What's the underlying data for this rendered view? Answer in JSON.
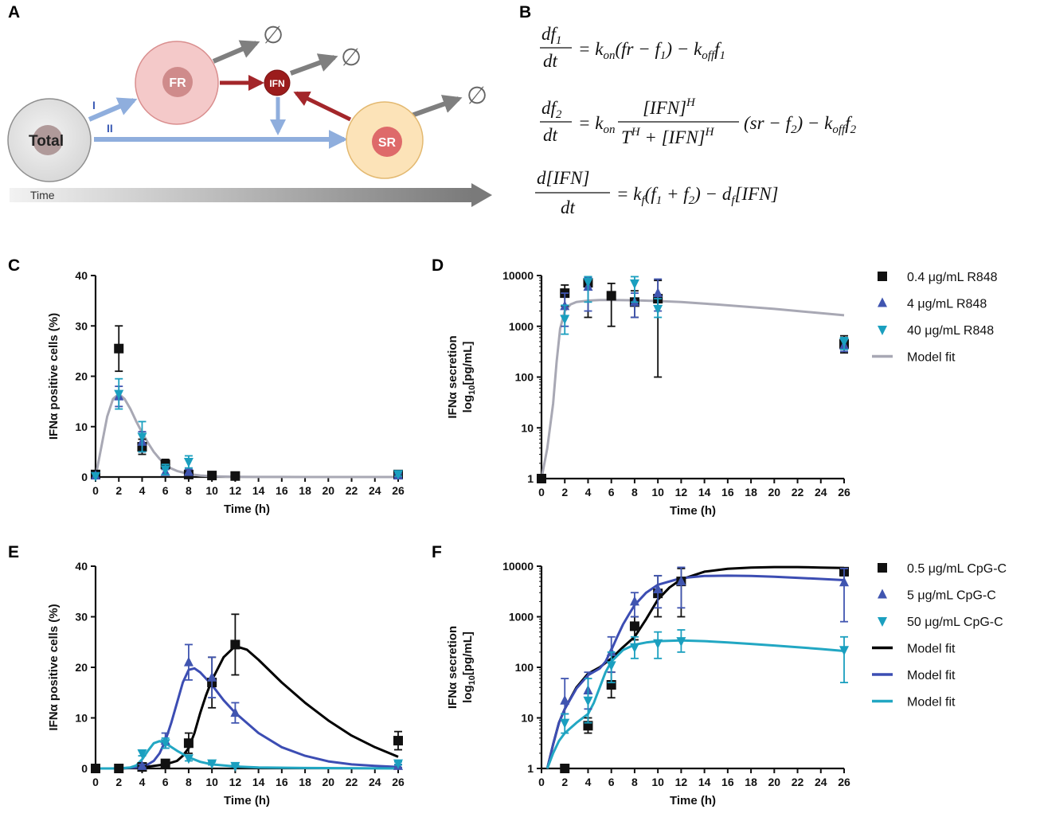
{
  "panels": {
    "a": "A",
    "b": "B",
    "c": "C",
    "d": "D",
    "e": "E",
    "f": "F"
  },
  "diagram": {
    "total_label": "Total",
    "fr_label": "FR",
    "ifn_label": "IFN",
    "sr_label": "SR",
    "route_one": "I",
    "route_two": "II",
    "time_label": "Time",
    "degrade_symbol": "∅",
    "colors": {
      "total_fill": "#e8e8e8",
      "fr_fill": "#f4c9c9",
      "sr_fill": "#fce3b8",
      "ifn_fill": "#9b1c1c",
      "blue_arrow": "#8faedd",
      "red_arrow": "#a3262a",
      "gray_arrow": "#7f7f7f"
    }
  },
  "equations": {
    "eq1": {
      "lhs_num": "df",
      "lhs_num_sub": "1",
      "lhs_den": "dt",
      "rhs_parts": [
        "= k",
        "on",
        "(fr − f",
        "1",
        ") − k",
        "off",
        "f",
        "1"
      ]
    },
    "eq2": {
      "lhs_num": "df",
      "lhs_num_sub": "2",
      "lhs_den": "dt",
      "pre": "= k",
      "pre_sub": "on",
      "frac_num": "[IFN]",
      "frac_num_sup": "H",
      "frac_den_a": "T",
      "frac_den_a_sup": "H",
      "frac_den_b": " + [IFN]",
      "frac_den_b_sup": "H",
      "post": "(sr − f",
      "post_sub": "2",
      "post2": ") − k",
      "post2_sub": "off",
      "post3": "f",
      "post3_sub": "2"
    },
    "eq3": {
      "lhs_num": "d[IFN]",
      "lhs_den": "dt",
      "rhs_parts": [
        "= k",
        "f",
        "(f",
        "1",
        " + f",
        "2",
        ") − d",
        "f",
        "[IFN]"
      ]
    }
  },
  "chart_data": [
    {
      "id": "C",
      "type": "scatter",
      "xlabel": "Time (h)",
      "ylabel": "IFNα positive cells (%)",
      "xlim": [
        0,
        26
      ],
      "ylim": [
        0,
        40
      ],
      "yscale": "linear",
      "xticks": [
        0,
        2,
        4,
        6,
        8,
        10,
        12,
        14,
        16,
        18,
        20,
        22,
        24,
        26
      ],
      "yticks": [
        0,
        10,
        20,
        30,
        40
      ],
      "series": [
        {
          "name": "0.4 μg/mL R848",
          "marker": "square",
          "color": "#111111",
          "points": [
            [
              0,
              0.5,
              0
            ],
            [
              2,
              25.5,
              4.5
            ],
            [
              4,
              6,
              1.5
            ],
            [
              6,
              2.5,
              1
            ],
            [
              8,
              0.5,
              0.3
            ],
            [
              10,
              0.3,
              0.2
            ],
            [
              12,
              0.2,
              0.2
            ],
            [
              26,
              0.5,
              0.3
            ]
          ]
        },
        {
          "name": "4 μg/mL R848",
          "marker": "triangle-up",
          "color": "#4055b0",
          "points": [
            [
              0,
              0.3,
              0
            ],
            [
              2,
              16,
              2
            ],
            [
              4,
              7,
              2
            ],
            [
              6,
              1,
              0.5
            ],
            [
              8,
              1,
              0.5
            ],
            [
              26,
              0.3,
              0.3
            ]
          ]
        },
        {
          "name": "40 μg/mL R848",
          "marker": "triangle-down",
          "color": "#1a9fbf",
          "points": [
            [
              0,
              0.2,
              0
            ],
            [
              2,
              16.5,
              3
            ],
            [
              4,
              8,
              3
            ],
            [
              6,
              1.5,
              1
            ],
            [
              8,
              3,
              1.2
            ],
            [
              26,
              0.6,
              0.4
            ]
          ]
        }
      ],
      "fits": [
        {
          "name": "Model fit",
          "color": "#a8a8b4",
          "x": [
            0,
            0.5,
            1,
            1.5,
            2,
            2.5,
            3,
            3.5,
            4,
            4.5,
            5,
            5.5,
            6,
            6.5,
            7,
            8,
            9,
            10,
            12,
            14,
            16,
            20,
            26
          ],
          "y": [
            0,
            6,
            12,
            15.5,
            16.5,
            15.5,
            13.5,
            11,
            8.8,
            6.8,
            5,
            3.6,
            2.5,
            1.7,
            1.2,
            0.6,
            0.3,
            0.15,
            0.05,
            0.02,
            0.01,
            0,
            0
          ]
        }
      ]
    },
    {
      "id": "D",
      "type": "scatter",
      "xlabel": "Time (h)",
      "ylabel": "IFNα secretion log10[pg/mL]",
      "xlim": [
        0,
        26
      ],
      "ylim": [
        1,
        10000
      ],
      "yscale": "log",
      "xticks": [
        0,
        2,
        4,
        6,
        8,
        10,
        12,
        14,
        16,
        18,
        20,
        22,
        24,
        26
      ],
      "yticks": [
        1,
        10,
        100,
        1000,
        10000
      ],
      "legend": [
        "0.4 μg/mL R848",
        "4 μg/mL R848",
        "40 μg/mL R848",
        "Model fit"
      ],
      "series": [
        {
          "name": "0.4 μg/mL R848",
          "marker": "square",
          "color": "#111111",
          "points": [
            [
              0,
              1,
              1,
              1
            ],
            [
              2,
              4500,
              2500,
              6500
            ],
            [
              4,
              7200,
              1500,
              9500
            ],
            [
              6,
              4000,
              1000,
              7000
            ],
            [
              8,
              3000,
              1500,
              5000
            ],
            [
              10,
              3500,
              100,
              8000
            ],
            [
              26,
              450,
              300,
              650
            ]
          ]
        },
        {
          "name": "4 μg/mL R848",
          "marker": "triangle-up",
          "color": "#4055b0",
          "points": [
            [
              2,
              2500,
              1000,
              4500
            ],
            [
              4,
              6000,
              2000,
              9000
            ],
            [
              8,
              3000,
              1500,
              4500
            ],
            [
              10,
              4500,
              2000,
              8500
            ],
            [
              26,
              420,
              320,
              550
            ]
          ]
        },
        {
          "name": "40 μg/mL R848",
          "marker": "triangle-down",
          "color": "#1a9fbf",
          "points": [
            [
              2,
              1400,
              700,
              2600
            ],
            [
              4,
              7500,
              3000,
              9500
            ],
            [
              8,
              7000,
              3000,
              9500
            ],
            [
              10,
              2200,
              1500,
              3500
            ],
            [
              26,
              500,
              350,
              600
            ]
          ]
        }
      ],
      "fits": [
        {
          "name": "Model fit",
          "color": "#a8a8b4",
          "x": [
            0,
            0.5,
            1,
            1.3,
            1.6,
            2,
            2.5,
            3,
            4,
            5,
            6,
            8,
            10,
            12,
            15,
            20,
            26
          ],
          "y": [
            1,
            4,
            30,
            200,
            900,
            2000,
            2700,
            3000,
            3200,
            3300,
            3300,
            3250,
            3150,
            3000,
            2700,
            2200,
            1650
          ]
        }
      ]
    },
    {
      "id": "E",
      "type": "scatter",
      "xlabel": "Time (h)",
      "ylabel": "IFNα positive cells (%)",
      "xlim": [
        0,
        26
      ],
      "ylim": [
        0,
        40
      ],
      "yscale": "linear",
      "xticks": [
        0,
        2,
        4,
        6,
        8,
        10,
        12,
        14,
        16,
        18,
        20,
        22,
        24,
        26
      ],
      "yticks": [
        0,
        10,
        20,
        30,
        40
      ],
      "series": [
        {
          "name": "0.5 μg/mL CpG-C",
          "marker": "square",
          "color": "#111111",
          "points": [
            [
              0,
              0,
              0
            ],
            [
              2,
              0,
              0
            ],
            [
              4,
              0.3,
              0.2
            ],
            [
              6,
              1,
              0.5
            ],
            [
              8,
              5,
              2
            ],
            [
              10,
              17,
              5
            ],
            [
              12,
              24.5,
              6
            ],
            [
              26,
              5.5,
              1.8
            ]
          ]
        },
        {
          "name": "5 μg/mL CpG-C",
          "marker": "triangle-up",
          "color": "#4055b0",
          "points": [
            [
              4,
              0.5,
              0.3
            ],
            [
              6,
              5.5,
              1.5
            ],
            [
              8,
              21,
              3.5
            ],
            [
              10,
              18,
              4
            ],
            [
              12,
              11,
              2
            ],
            [
              26,
              0.5,
              0.3
            ]
          ]
        },
        {
          "name": "50 μg/mL CpG-C",
          "marker": "triangle-down",
          "color": "#1a9fbf",
          "points": [
            [
              4,
              3,
              0.5
            ],
            [
              6,
              5,
              1
            ],
            [
              8,
              2,
              0.5
            ],
            [
              10,
              1,
              0.3
            ],
            [
              12,
              0.5,
              0.2
            ],
            [
              26,
              1,
              0.3
            ]
          ]
        }
      ],
      "fits": [
        {
          "name": "Model fit",
          "color": "#000000",
          "x": [
            0,
            2,
            4,
            6,
            7,
            7.5,
            8,
            8.5,
            9,
            9.5,
            10,
            11,
            12,
            13,
            14,
            16,
            18,
            20,
            22,
            24,
            26
          ],
          "y": [
            0,
            0,
            0.2,
            0.8,
            1.5,
            2.5,
            4,
            7,
            11,
            14.5,
            17.5,
            22,
            24.2,
            23.5,
            21.5,
            17,
            13,
            9.5,
            6.5,
            4.2,
            2.3
          ]
        },
        {
          "name": "Model fit",
          "color": "#3c4db3",
          "x": [
            0,
            2,
            4,
            4.5,
            5,
            5.5,
            6,
            6.5,
            7,
            7.5,
            8,
            8.5,
            9,
            10,
            11,
            12,
            14,
            16,
            18,
            20,
            22,
            24,
            26
          ],
          "y": [
            0,
            0,
            0.3,
            0.8,
            1.5,
            3,
            5.5,
            9,
            13,
            17,
            19.5,
            19.8,
            19,
            16.5,
            13.5,
            11,
            7,
            4.2,
            2.5,
            1.4,
            0.8,
            0.5,
            0.3
          ]
        },
        {
          "name": "Model fit",
          "color": "#22a7c3",
          "x": [
            0,
            2,
            3,
            3.5,
            4,
            4.5,
            5,
            5.5,
            6,
            7,
            8,
            9,
            10,
            12,
            14,
            18,
            26
          ],
          "y": [
            0,
            0,
            0.2,
            0.6,
            1.8,
            3.5,
            5,
            5.4,
            5,
            3.5,
            2.2,
            1.3,
            0.8,
            0.4,
            0.2,
            0.1,
            0
          ]
        }
      ]
    },
    {
      "id": "F",
      "type": "scatter",
      "xlabel": "Time (h)",
      "ylabel": "IFNα secretion log10[pg/mL]",
      "xlim": [
        0,
        26
      ],
      "ylim": [
        1,
        10000
      ],
      "yscale": "log",
      "xticks": [
        0,
        2,
        4,
        6,
        8,
        10,
        12,
        14,
        16,
        18,
        20,
        22,
        24,
        26
      ],
      "yticks": [
        1,
        10,
        100,
        1000,
        10000
      ],
      "legend": [
        "0.5 μg/mL CpG-C",
        "5 μg/mL CpG-C",
        "50 μg/mL CpG-C",
        "Model fit",
        "Model fit",
        "Model fit"
      ],
      "series": [
        {
          "name": "0.5 μg/mL CpG-C",
          "marker": "square",
          "color": "#111111",
          "points": [
            [
              2,
              1,
              1,
              1
            ],
            [
              4,
              7,
              5,
              10
            ],
            [
              6,
              45,
              25,
              80
            ],
            [
              8,
              650,
              350,
              1000
            ],
            [
              10,
              2900,
              1000,
              6500
            ],
            [
              12,
              5000,
              1000,
              9000
            ],
            [
              26,
              7800,
              6500,
              9000
            ]
          ]
        },
        {
          "name": "5 μg/mL CpG-C",
          "marker": "triangle-up",
          "color": "#4055b0",
          "points": [
            [
              2,
              22,
              12,
              60
            ],
            [
              4,
              35,
              15,
              80
            ],
            [
              6,
              200,
              80,
              400
            ],
            [
              8,
              2000,
              1000,
              3000
            ],
            [
              10,
              3500,
              1500,
              6500
            ],
            [
              12,
              5000,
              1500,
              9500
            ],
            [
              26,
              4800,
              800,
              9000
            ]
          ]
        },
        {
          "name": "50 μg/mL CpG-C",
          "marker": "triangle-down",
          "color": "#1a9fbf",
          "points": [
            [
              2,
              8,
              5,
              12
            ],
            [
              4,
              22,
              8,
              60
            ],
            [
              6,
              110,
              50,
              200
            ],
            [
              8,
              250,
              150,
              400
            ],
            [
              10,
              300,
              150,
              500
            ],
            [
              12,
              330,
              200,
              550
            ],
            [
              26,
              220,
              50,
              400
            ]
          ]
        }
      ],
      "fits": [
        {
          "name": "Model fit",
          "color": "#000000",
          "x": [
            0.5,
            1,
            1.5,
            2,
            3,
            4,
            5,
            6,
            7,
            8,
            9,
            10,
            11,
            12,
            14,
            16,
            18,
            20,
            22,
            24,
            26
          ],
          "y": [
            1,
            3,
            8,
            15,
            40,
            75,
            100,
            150,
            250,
            400,
            900,
            2200,
            3800,
            5500,
            7800,
            8900,
            9400,
            9600,
            9600,
            9400,
            9200
          ]
        },
        {
          "name": "Model fit",
          "color": "#3c4db3",
          "x": [
            0.5,
            1,
            1.5,
            2,
            3,
            4,
            5,
            5.5,
            6,
            6.5,
            7,
            7.5,
            8,
            9,
            10,
            12,
            14,
            16,
            18,
            20,
            22,
            24,
            26
          ],
          "y": [
            1,
            3,
            8,
            15,
            38,
            70,
            95,
            130,
            220,
            400,
            700,
            1100,
            1700,
            3000,
            4300,
            5800,
            6400,
            6500,
            6400,
            6200,
            5900,
            5600,
            5300
          ]
        },
        {
          "name": "Model fit",
          "color": "#22a7c3",
          "x": [
            0.5,
            1,
            1.5,
            2,
            3,
            4,
            4.5,
            5,
            5.5,
            6,
            7,
            8,
            9,
            10,
            12,
            14,
            16,
            18,
            20,
            22,
            24,
            26
          ],
          "y": [
            1,
            2,
            3.5,
            5,
            8,
            12,
            20,
            40,
            80,
            130,
            220,
            280,
            310,
            330,
            340,
            330,
            310,
            290,
            270,
            250,
            230,
            210
          ]
        }
      ]
    }
  ]
}
